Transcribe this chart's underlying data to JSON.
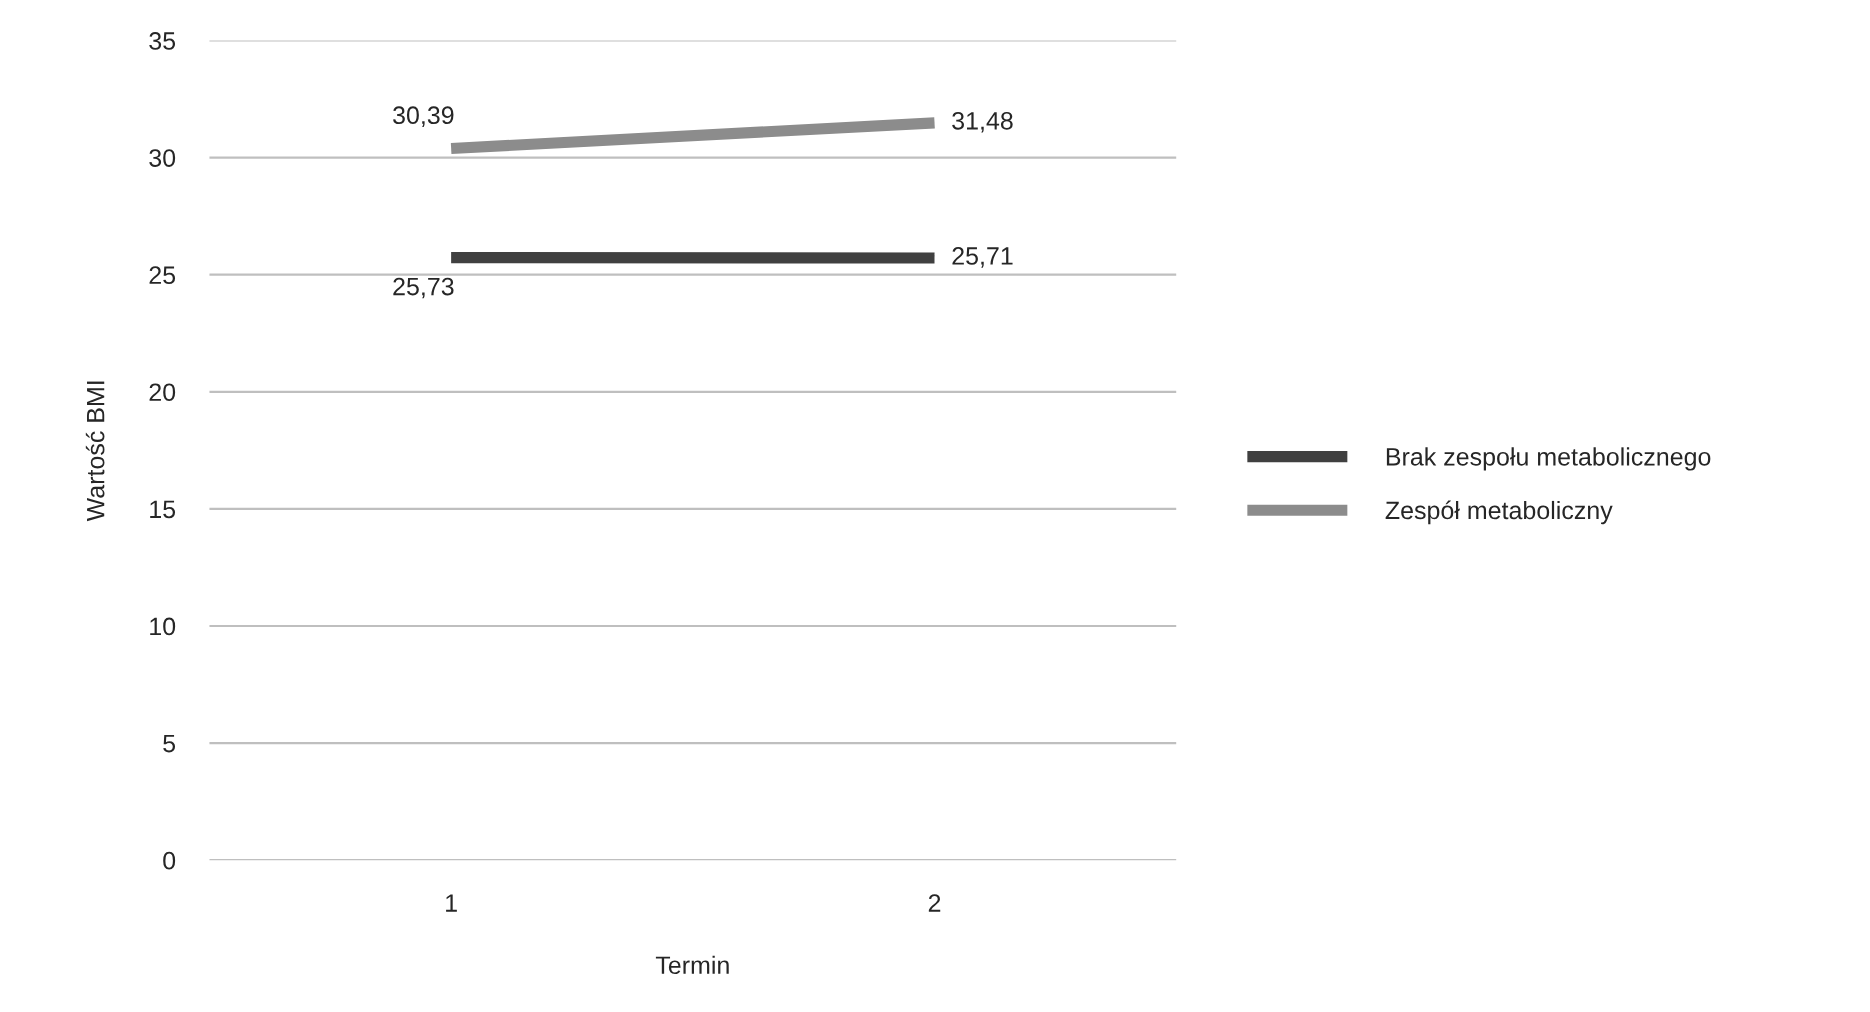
{
  "chart_data": {
    "type": "line",
    "xlabel": "Termin",
    "ylabel": "Wartość BMI",
    "categories": [
      "1",
      "2"
    ],
    "series": [
      {
        "name": "Brak zespołu metabolicznego",
        "color": "#404040",
        "values": [
          25.73,
          25.71
        ],
        "value_labels": [
          "25,73",
          "25,71"
        ]
      },
      {
        "name": "Zespół metaboliczny",
        "color": "#8c8c8c",
        "values": [
          30.39,
          31.48
        ],
        "value_labels": [
          "30,39",
          "31,48"
        ]
      }
    ],
    "ylim": [
      0,
      35
    ],
    "yticks": [
      0,
      5,
      10,
      15,
      20,
      25,
      30,
      35
    ],
    "grid": "y",
    "legend": "right",
    "marker": "none",
    "line_style": "solid"
  }
}
